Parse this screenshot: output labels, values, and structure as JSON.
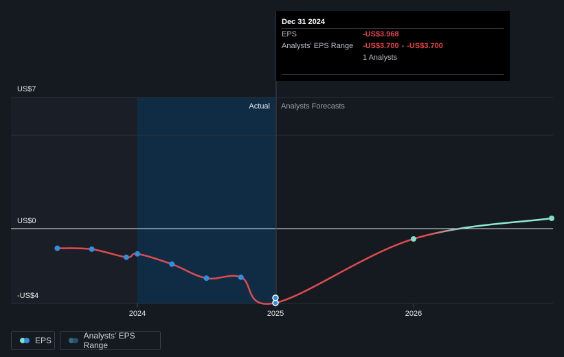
{
  "colors": {
    "background": "#151a21",
    "forecast_background": "#1a1f27",
    "actual_band": "#0f2c44",
    "eps_line": "#e04a4f",
    "point_past": "#2f8fdc",
    "point_forecast": "#7fe0c8",
    "forecast_line_end": "#8fe8d4",
    "grid": "#2b3038",
    "zero_line": "#e6e8ea"
  },
  "tooltip": {
    "date": "Dec 31 2024",
    "eps_label": "EPS",
    "eps_value": "-US$3.968",
    "range_label": "Analysts' EPS Range",
    "range_low": "-US$3.700",
    "range_separator": "-",
    "range_high": "-US$3.700",
    "analysts": "1 Analysts"
  },
  "legend": {
    "eps_label": "EPS",
    "range_label": "Analysts' EPS Range"
  },
  "chart_data": {
    "type": "line",
    "y_tick_labels": [
      "US$7",
      "US$0",
      "-US$4"
    ],
    "y_ticks": [
      7,
      0,
      -4
    ],
    "ylim": [
      -4,
      7
    ],
    "xlim": [
      2023.27,
      2027.02
    ],
    "x_tick_labels": [
      "2024",
      "2025",
      "2026"
    ],
    "x_ticks": [
      2024,
      2025,
      2026
    ],
    "region_labels": {
      "actual": "Actual",
      "forecast": "Analysts Forecasts"
    },
    "actual_band": [
      2024,
      2025
    ],
    "forecast_start": 2025,
    "legend_placement": "bottom-left",
    "series": [
      {
        "name": "EPS",
        "points": [
          {
            "x": 2023.42,
            "y": -1.05
          },
          {
            "x": 2023.67,
            "y": -1.1
          },
          {
            "x": 2023.92,
            "y": -1.53
          },
          {
            "x": 2024.0,
            "y": -1.35
          },
          {
            "x": 2024.25,
            "y": -1.9
          },
          {
            "x": 2024.5,
            "y": -2.65
          },
          {
            "x": 2024.75,
            "y": -2.6
          },
          {
            "x": 2025.0,
            "y": -3.968
          },
          {
            "x": 2026.0,
            "y": -0.55
          },
          {
            "x": 2027.0,
            "y": 0.55
          }
        ],
        "marked_points": [
          0,
          1,
          2,
          3,
          4,
          5,
          6,
          7,
          8,
          9
        ]
      }
    ],
    "range_points": [
      {
        "x": 2025.0,
        "low": -3.7,
        "high": -3.7
      }
    ]
  }
}
